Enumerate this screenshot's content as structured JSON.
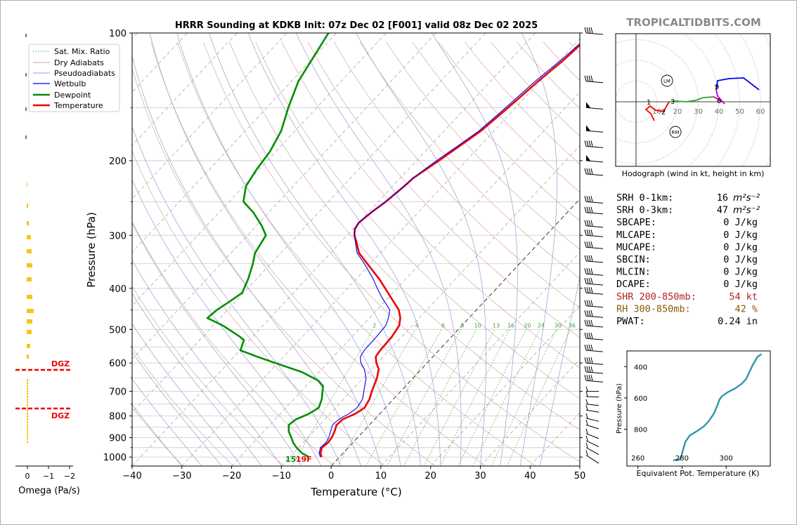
{
  "watermark": "TROPICALTIDBITS.COM",
  "chart_data": [
    {
      "type": "line",
      "name": "skew-t",
      "title": "HRRR Sounding at KDKB Init: 07z Dec 02 [F001] valid 08z Dec 02 2025",
      "xlabel": "Temperature (°C)",
      "ylabel": "Pressure (hPa)",
      "xlim": [
        -40,
        50
      ],
      "ylim": [
        1050,
        100
      ],
      "x_ticks": [
        -40,
        -30,
        -20,
        -10,
        0,
        10,
        20,
        30,
        40,
        50
      ],
      "y_ticks": [
        100,
        200,
        300,
        400,
        500,
        600,
        700,
        800,
        900,
        1000
      ],
      "y_scale": "log",
      "grid": true,
      "legend": {
        "placement": "top-left",
        "entries": [
          "Sat. Mix. Ratio",
          "Dry Adiabats",
          "Pseudoadiabats",
          "Wetbulb",
          "Dewpoint",
          "Temperature"
        ]
      },
      "mixing_ratio_labels": [
        "2",
        "4",
        "6",
        "8",
        "10",
        "13",
        "16",
        "20",
        "24",
        "30",
        "36"
      ],
      "surface_dewpoint_label": "15",
      "surface_temp_label": "19F",
      "series": [
        {
          "name": "Temperature",
          "color": "#ee0000",
          "points": [
            [
              1000,
              -3.6
            ],
            [
              980,
              -4.5
            ],
            [
              950,
              -5.3
            ],
            [
              925,
              -5.0
            ],
            [
              900,
              -5.2
            ],
            [
              870,
              -5.8
            ],
            [
              840,
              -6.6
            ],
            [
              815,
              -6.4
            ],
            [
              790,
              -4.9
            ],
            [
              765,
              -4.2
            ],
            [
              730,
              -4.8
            ],
            [
              700,
              -5.8
            ],
            [
              650,
              -7.3
            ],
            [
              620,
              -8.6
            ],
            [
              600,
              -10.2
            ],
            [
              580,
              -11.5
            ],
            [
              560,
              -11.8
            ],
            [
              520,
              -12.0
            ],
            [
              490,
              -12.6
            ],
            [
              470,
              -13.8
            ],
            [
              450,
              -15.6
            ],
            [
              420,
              -19.6
            ],
            [
              400,
              -22.4
            ],
            [
              380,
              -25.4
            ],
            [
              350,
              -30.6
            ],
            [
              330,
              -34.3
            ],
            [
              310,
              -37.0
            ],
            [
              300,
              -38.5
            ],
            [
              290,
              -39.6
            ],
            [
              280,
              -40.0
            ],
            [
              265,
              -39.4
            ],
            [
              250,
              -38.5
            ],
            [
              230,
              -37.7
            ],
            [
              220,
              -37.4
            ],
            [
              200,
              -35.5
            ],
            [
              185,
              -34.1
            ],
            [
              170,
              -32.6
            ],
            [
              150,
              -31.5
            ],
            [
              130,
              -30.4
            ],
            [
              115,
              -29.2
            ],
            [
              105,
              -28.7
            ],
            [
              100,
              -28.3
            ]
          ]
        },
        {
          "name": "Wetbulb",
          "color": "#0000ee",
          "points": [
            [
              1000,
              -3.8
            ],
            [
              980,
              -4.8
            ],
            [
              950,
              -5.6
            ],
            [
              925,
              -5.4
            ],
            [
              900,
              -5.8
            ],
            [
              870,
              -6.6
            ],
            [
              840,
              -7.4
            ],
            [
              815,
              -7.2
            ],
            [
              790,
              -6.2
            ],
            [
              765,
              -5.7
            ],
            [
              730,
              -6.2
            ],
            [
              700,
              -7.4
            ],
            [
              650,
              -9.5
            ],
            [
              620,
              -11.5
            ],
            [
              600,
              -13.3
            ],
            [
              580,
              -14.6
            ],
            [
              560,
              -15.0
            ],
            [
              520,
              -15.1
            ],
            [
              490,
              -15.3
            ],
            [
              470,
              -16.2
            ],
            [
              450,
              -17.4
            ],
            [
              420,
              -21.4
            ],
            [
              400,
              -24.0
            ],
            [
              380,
              -26.6
            ],
            [
              350,
              -31.2
            ],
            [
              330,
              -34.7
            ],
            [
              310,
              -37.2
            ],
            [
              300,
              -38.5
            ],
            [
              290,
              -39.6
            ],
            [
              280,
              -40.0
            ],
            [
              265,
              -39.4
            ],
            [
              250,
              -38.5
            ],
            [
              230,
              -37.7
            ],
            [
              220,
              -37.5
            ],
            [
              200,
              -36.0
            ],
            [
              185,
              -34.5
            ],
            [
              170,
              -33.0
            ],
            [
              150,
              -32.0
            ],
            [
              130,
              -31.0
            ],
            [
              115,
              -29.7
            ],
            [
              105,
              -29.0
            ],
            [
              100,
              -28.6
            ]
          ]
        },
        {
          "name": "Dewpoint",
          "color": "#008f00",
          "points": [
            [
              1000,
              -6.1
            ],
            [
              980,
              -8.2
            ],
            [
              950,
              -10.4
            ],
            [
              925,
              -12.0
            ],
            [
              900,
              -13.3
            ],
            [
              870,
              -15.0
            ],
            [
              840,
              -16.2
            ],
            [
              815,
              -15.8
            ],
            [
              790,
              -14.2
            ],
            [
              765,
              -13.4
            ],
            [
              730,
              -14.4
            ],
            [
              700,
              -15.7
            ],
            [
              680,
              -16.6
            ],
            [
              660,
              -18.6
            ],
            [
              630,
              -23.5
            ],
            [
              600,
              -30.5
            ],
            [
              580,
              -35.3
            ],
            [
              560,
              -39.9
            ],
            [
              530,
              -41.1
            ],
            [
              520,
              -42.6
            ],
            [
              490,
              -48.0
            ],
            [
              470,
              -52.6
            ],
            [
              450,
              -52.2
            ],
            [
              430,
              -51.2
            ],
            [
              410,
              -50.3
            ],
            [
              380,
              -51.7
            ],
            [
              350,
              -53.6
            ],
            [
              330,
              -55.2
            ],
            [
              300,
              -56.3
            ],
            [
              285,
              -58.9
            ],
            [
              265,
              -63.1
            ],
            [
              250,
              -67.1
            ],
            [
              230,
              -69.5
            ],
            [
              210,
              -70.5
            ],
            [
              190,
              -71.2
            ],
            [
              170,
              -72.8
            ],
            [
              150,
              -75.7
            ],
            [
              130,
              -78.6
            ],
            [
              115,
              -80.0
            ],
            [
              100,
              -81.6
            ]
          ]
        }
      ]
    },
    {
      "type": "bar",
      "name": "omega",
      "xlabel": "Omega (Pa/s)",
      "x_ticks": [
        "0",
        "−1",
        "−2"
      ],
      "dgz_label": "DGZ"
    },
    {
      "type": "line",
      "name": "hodograph",
      "caption": "Hodograph (wind in kt, height in km)",
      "ring_labels": [
        "10",
        "20",
        "30",
        "40",
        "50",
        "60"
      ],
      "height_labels": [
        "1",
        "2",
        "3",
        "6",
        "9"
      ],
      "storm_motion_labels": [
        "LM",
        "RM"
      ]
    },
    {
      "type": "line",
      "name": "theta-e",
      "xlabel": "Equivalent Pot. Temperature (K)",
      "ylabel": "Pressure (hPa)",
      "x_ticks": [
        "260",
        "280",
        "300"
      ],
      "y_ticks": [
        "400",
        "600",
        "800"
      ],
      "series": [
        {
          "name": "",
          "color": "#2e96a8",
          "points": [
            [
              998,
              276
            ],
            [
              995,
              278.5
            ],
            [
              985,
              279.2
            ],
            [
              965,
              279.8
            ],
            [
              930,
              280.5
            ],
            [
              880,
              281.5
            ],
            [
              840,
              283.5
            ],
            [
              810,
              287
            ],
            [
              780,
              290
            ],
            [
              750,
              292
            ],
            [
              720,
              293.5
            ],
            [
              690,
              294.8
            ],
            [
              665,
              295.5
            ],
            [
              640,
              296.2
            ],
            [
              610,
              297
            ],
            [
              590,
              298
            ],
            [
              565,
              300.5
            ],
            [
              540,
              304
            ],
            [
              510,
              307
            ],
            [
              480,
              309
            ],
            [
              450,
              310
            ],
            [
              420,
              311
            ],
            [
              390,
              312
            ],
            [
              355,
              313.5
            ],
            [
              340,
              314
            ],
            [
              320,
              316
            ]
          ]
        }
      ]
    }
  ],
  "params": [
    {
      "label": "SRH 0-1km:",
      "value": "16",
      "unit": "m²s⁻²",
      "color": "#000000"
    },
    {
      "label": "SRH 0-3km:",
      "value": "47",
      "unit": "m²s⁻²",
      "color": "#000000"
    },
    {
      "label": "SBCAPE:",
      "value": "0 J/kg",
      "unit": "",
      "color": "#000000"
    },
    {
      "label": "MLCAPE:",
      "value": "0 J/kg",
      "unit": "",
      "color": "#000000"
    },
    {
      "label": "MUCAPE:",
      "value": "0 J/kg",
      "unit": "",
      "color": "#000000"
    },
    {
      "label": "SBCIN:",
      "value": "0 J/kg",
      "unit": "",
      "color": "#000000"
    },
    {
      "label": "MLCIN:",
      "value": "0 J/kg",
      "unit": "",
      "color": "#000000"
    },
    {
      "label": "DCAPE:",
      "value": "0 J/kg",
      "unit": "",
      "color": "#000000"
    },
    {
      "label": "SHR 200-850mb:",
      "value": "54 kt",
      "unit": "",
      "color": "#b22222"
    },
    {
      "label": "RH 300-850mb:",
      "value": "42 %",
      "unit": "",
      "color": "#8b5a00"
    },
    {
      "label": "PWAT:",
      "value": "0.24 in",
      "unit": "",
      "color": "#000000"
    }
  ]
}
